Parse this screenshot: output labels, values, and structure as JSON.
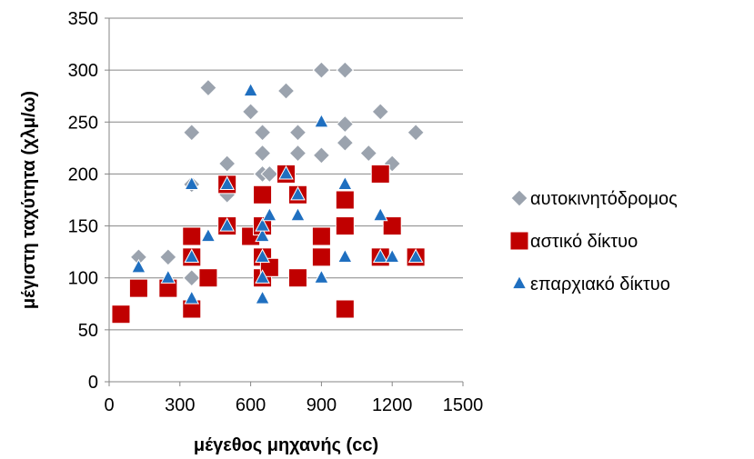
{
  "chart_data": {
    "type": "scatter",
    "title": "",
    "xlabel": "μέγεθος μηχανής (cc)",
    "ylabel": "μέγιστη ταχύτητα (χλμ/ω)",
    "xlim": [
      0,
      1500
    ],
    "ylim": [
      0,
      350
    ],
    "x_ticks": [
      0,
      300,
      600,
      900,
      1200,
      1500
    ],
    "y_ticks": [
      0,
      50,
      100,
      150,
      200,
      250,
      300,
      350
    ],
    "grid": "horizontal",
    "legend_position": "right",
    "series": [
      {
        "name": "αυτοκινητόδρομος",
        "marker": "diamond",
        "color": "#9BA3AE",
        "points": [
          [
            125,
            120
          ],
          [
            250,
            120
          ],
          [
            350,
            100
          ],
          [
            350,
            190
          ],
          [
            350,
            240
          ],
          [
            420,
            283
          ],
          [
            500,
            180
          ],
          [
            500,
            210
          ],
          [
            600,
            260
          ],
          [
            650,
            200
          ],
          [
            650,
            220
          ],
          [
            650,
            240
          ],
          [
            680,
            200
          ],
          [
            750,
            280
          ],
          [
            800,
            220
          ],
          [
            800,
            240
          ],
          [
            900,
            218
          ],
          [
            900,
            300
          ],
          [
            1000,
            230
          ],
          [
            1000,
            248
          ],
          [
            1000,
            300
          ],
          [
            1100,
            220
          ],
          [
            1150,
            260
          ],
          [
            1200,
            210
          ],
          [
            1300,
            240
          ]
        ]
      },
      {
        "name": "αστικό δίκτυο",
        "marker": "square",
        "color": "#C00000",
        "points": [
          [
            50,
            65
          ],
          [
            125,
            90
          ],
          [
            250,
            90
          ],
          [
            350,
            70
          ],
          [
            350,
            120
          ],
          [
            350,
            140
          ],
          [
            420,
            100
          ],
          [
            500,
            150
          ],
          [
            500,
            190
          ],
          [
            600,
            140
          ],
          [
            650,
            180
          ],
          [
            650,
            150
          ],
          [
            650,
            120
          ],
          [
            650,
            100
          ],
          [
            680,
            110
          ],
          [
            750,
            200
          ],
          [
            800,
            180
          ],
          [
            800,
            100
          ],
          [
            900,
            140
          ],
          [
            900,
            120
          ],
          [
            1000,
            175
          ],
          [
            1000,
            150
          ],
          [
            1000,
            70
          ],
          [
            1150,
            200
          ],
          [
            1150,
            120
          ],
          [
            1200,
            150
          ],
          [
            1300,
            120
          ]
        ]
      },
      {
        "name": "επαρχιακό δίκτυο",
        "marker": "triangle",
        "color": "#1F6FC0",
        "points": [
          [
            125,
            110
          ],
          [
            250,
            100
          ],
          [
            350,
            80
          ],
          [
            350,
            120
          ],
          [
            350,
            190
          ],
          [
            420,
            140
          ],
          [
            500,
            150
          ],
          [
            500,
            190
          ],
          [
            600,
            280
          ],
          [
            650,
            80
          ],
          [
            650,
            100
          ],
          [
            650,
            120
          ],
          [
            650,
            140
          ],
          [
            650,
            150
          ],
          [
            680,
            160
          ],
          [
            750,
            200
          ],
          [
            800,
            160
          ],
          [
            800,
            180
          ],
          [
            900,
            100
          ],
          [
            900,
            250
          ],
          [
            1000,
            120
          ],
          [
            1000,
            190
          ],
          [
            1150,
            120
          ],
          [
            1150,
            160
          ],
          [
            1200,
            120
          ],
          [
            1300,
            120
          ]
        ]
      }
    ]
  }
}
